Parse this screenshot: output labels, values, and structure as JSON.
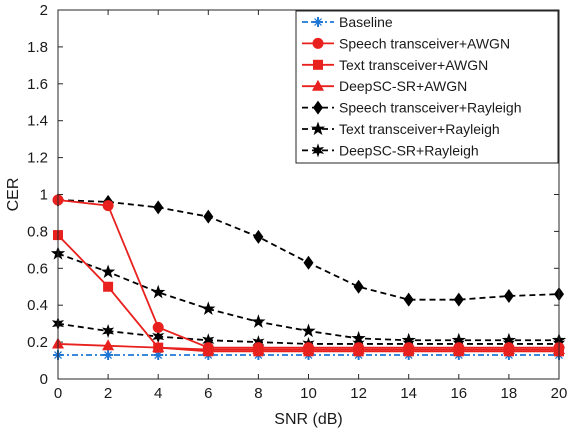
{
  "chart_data": {
    "type": "line",
    "xlabel": "SNR (dB)",
    "ylabel": "CER",
    "xlim": [
      0,
      20
    ],
    "ylim": [
      0,
      2
    ],
    "xticks": [
      0,
      2,
      4,
      6,
      8,
      10,
      12,
      14,
      16,
      18,
      20
    ],
    "yticks": [
      0,
      0.2,
      0.4,
      0.6,
      0.8,
      1,
      1.2,
      1.4,
      1.6,
      1.8,
      2
    ],
    "grid": false,
    "legend_position": "top-right",
    "x": [
      0,
      2,
      4,
      6,
      8,
      10,
      12,
      14,
      16,
      18,
      20
    ],
    "series": [
      {
        "name": "Baseline",
        "color": "#1f77d4",
        "dash": "dash-dot",
        "marker": "plus-star",
        "values": [
          0.13,
          0.13,
          0.13,
          0.13,
          0.13,
          0.13,
          0.13,
          0.13,
          0.13,
          0.13,
          0.13
        ]
      },
      {
        "name": "Speech transceiver+AWGN",
        "color": "#e8201e",
        "dash": "solid",
        "marker": "circle",
        "values": [
          0.97,
          0.94,
          0.28,
          0.17,
          0.17,
          0.17,
          0.17,
          0.17,
          0.17,
          0.17,
          0.17
        ]
      },
      {
        "name": "Text transceiver+AWGN",
        "color": "#e8201e",
        "dash": "solid",
        "marker": "square",
        "values": [
          0.78,
          0.5,
          0.17,
          0.15,
          0.15,
          0.15,
          0.15,
          0.15,
          0.15,
          0.15,
          0.15
        ]
      },
      {
        "name": "DeepSC-SR+AWGN",
        "color": "#e8201e",
        "dash": "solid",
        "marker": "triangle",
        "values": [
          0.19,
          0.18,
          0.17,
          0.16,
          0.16,
          0.16,
          0.16,
          0.16,
          0.16,
          0.16,
          0.16
        ]
      },
      {
        "name": "Speech transceiver+Rayleigh",
        "color": "#000000",
        "dash": "dashed",
        "marker": "diamond",
        "values": [
          0.97,
          0.96,
          0.93,
          0.88,
          0.77,
          0.63,
          0.5,
          0.43,
          0.43,
          0.45,
          0.46
        ]
      },
      {
        "name": "Text transceiver+Rayleigh",
        "color": "#000000",
        "dash": "dashed",
        "marker": "star5",
        "values": [
          0.68,
          0.58,
          0.47,
          0.38,
          0.31,
          0.26,
          0.22,
          0.21,
          0.21,
          0.21,
          0.21
        ]
      },
      {
        "name": "DeepSC-SR+Rayleigh",
        "color": "#000000",
        "dash": "dashed",
        "marker": "star6",
        "values": [
          0.3,
          0.26,
          0.23,
          0.21,
          0.2,
          0.19,
          0.19,
          0.19,
          0.19,
          0.19,
          0.19
        ]
      }
    ]
  }
}
